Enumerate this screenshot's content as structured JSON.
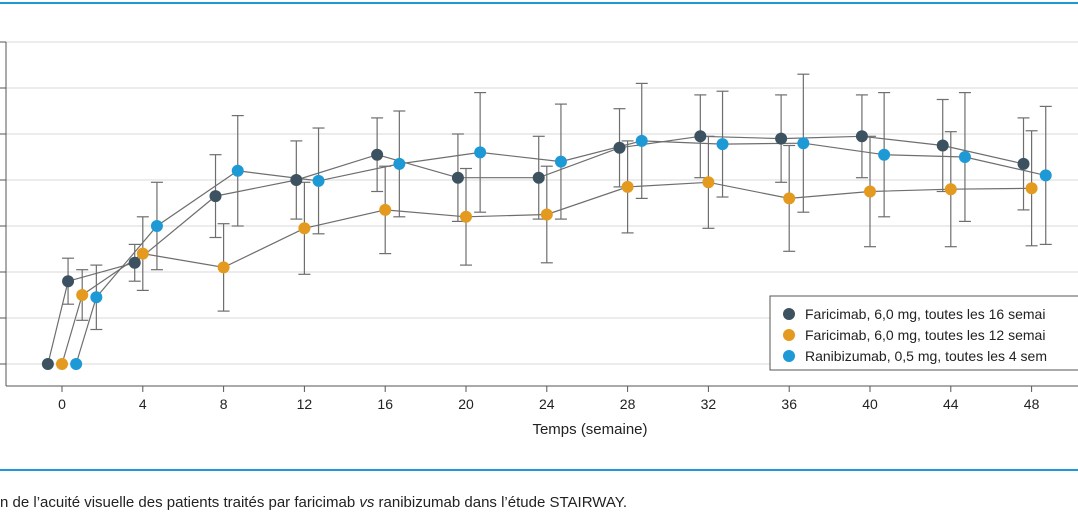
{
  "caption": {
    "part1": "n de l’acuité visuelle des patients traités par faricimab ",
    "part2": "vs",
    "part3": " ranibizumab dans l’étude STAIRWAY."
  },
  "colors": {
    "rule": "#1d9ad6",
    "grid": "#d9d9d9",
    "axis": "#555555",
    "errorbar": "#6e6e6e"
  },
  "chart_data": {
    "type": "line",
    "xlabel": "Temps (semaine)",
    "ylabel": "",
    "x_ticks": [
      0,
      4,
      8,
      12,
      16,
      20,
      24,
      28,
      32,
      36,
      40,
      44,
      48
    ],
    "ylim": [
      0,
      7
    ],
    "grid": "horizontal",
    "legend_position": "bottom-right",
    "series": [
      {
        "name": "Faricimab, 6,0 mg, toutes les 16 semai",
        "color": "#3d5260",
        "x": [
          -0.7,
          0.3,
          3.6,
          7.6,
          11.6,
          15.6,
          19.6,
          23.6,
          27.6,
          31.6,
          35.6,
          39.6,
          43.6,
          47.6
        ],
        "y": [
          0,
          1.8,
          2.2,
          3.65,
          4.0,
          4.55,
          4.05,
          4.05,
          4.7,
          4.95,
          4.9,
          4.95,
          4.75,
          4.35
        ],
        "err": [
          0,
          0.5,
          0.4,
          0.9,
          0.85,
          0.8,
          0.95,
          0.9,
          0.85,
          0.9,
          0.95,
          0.9,
          1.0,
          1.0
        ]
      },
      {
        "name": "Faricimab, 6,0 mg, toutes les 12 semai",
        "color": "#e39a1e",
        "x": [
          0,
          1,
          4,
          8,
          12,
          16,
          20,
          24,
          28,
          32,
          36,
          40,
          44,
          48
        ],
        "y": [
          0,
          1.5,
          2.4,
          2.1,
          2.95,
          3.35,
          3.2,
          3.25,
          3.85,
          3.95,
          3.6,
          3.75,
          3.8,
          3.82
        ],
        "err": [
          0,
          0.55,
          0.8,
          0.95,
          1.0,
          0.95,
          1.05,
          1.05,
          1.0,
          1.0,
          1.15,
          1.2,
          1.25,
          1.25
        ]
      },
      {
        "name": "Ranibizumab, 0,5 mg, toutes les 4 sem",
        "color": "#1d9ad6",
        "x": [
          0.7,
          1.7,
          4.7,
          8.7,
          12.7,
          16.7,
          20.7,
          24.7,
          28.7,
          32.7,
          36.7,
          40.7,
          44.7,
          48.7
        ],
        "y": [
          0,
          1.45,
          3.0,
          4.2,
          3.98,
          4.35,
          4.6,
          4.4,
          4.85,
          4.78,
          4.8,
          4.55,
          4.5,
          4.1
        ],
        "err": [
          0,
          0.7,
          0.95,
          1.2,
          1.15,
          1.15,
          1.3,
          1.25,
          1.25,
          1.15,
          1.5,
          1.35,
          1.4,
          1.5
        ]
      }
    ]
  }
}
